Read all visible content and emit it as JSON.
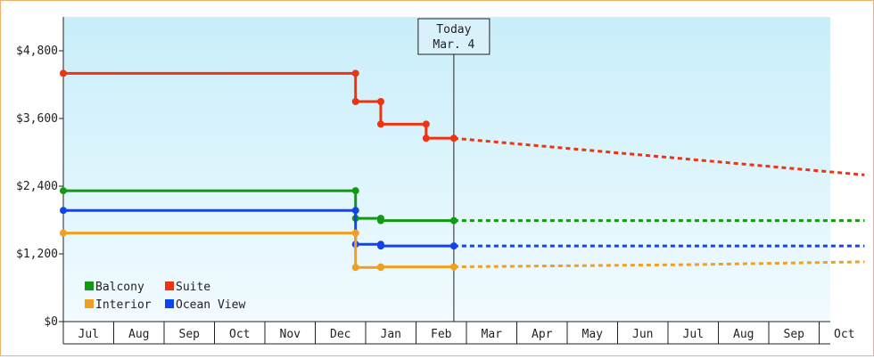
{
  "chart_data": {
    "type": "line",
    "step": true,
    "title": "",
    "xlabel": "",
    "ylabel": "",
    "ylim": [
      0,
      5400
    ],
    "yticks": [
      {
        "value": 0,
        "label": "$0"
      },
      {
        "value": 1200,
        "label": "$1,200"
      },
      {
        "value": 2400,
        "label": "$2,400"
      },
      {
        "value": 3600,
        "label": "$3,600"
      },
      {
        "value": 4800,
        "label": "$4,800"
      }
    ],
    "months": [
      "Jul",
      "Aug",
      "Sep",
      "Oct",
      "Nov",
      "Dec",
      "Jan",
      "Feb",
      "Mar",
      "Apr",
      "May",
      "Jun",
      "Jul",
      "Aug",
      "Sep",
      "Oct"
    ],
    "today": {
      "line1": "Today",
      "line2": "Mar. 4",
      "month_pos": 7.75
    },
    "grid": false,
    "legend_position": "bottom-left",
    "series": [
      {
        "name": "Suite",
        "color": "#ee3311",
        "points": [
          [
            0,
            4400
          ],
          [
            5.8,
            4400
          ],
          [
            5.8,
            3900
          ],
          [
            6.3,
            3900
          ],
          [
            6.3,
            3500
          ],
          [
            7.2,
            3500
          ],
          [
            7.2,
            3250
          ],
          [
            7.75,
            3250
          ]
        ],
        "forecast": [
          [
            7.75,
            3250
          ],
          [
            15.9,
            2600
          ]
        ]
      },
      {
        "name": "Balcony",
        "color": "#119911",
        "points": [
          [
            0,
            2320
          ],
          [
            5.8,
            2320
          ],
          [
            5.8,
            1830
          ],
          [
            6.3,
            1830
          ],
          [
            6.3,
            1790
          ],
          [
            7.75,
            1790
          ]
        ],
        "forecast": [
          [
            7.75,
            1790
          ],
          [
            15.9,
            1790
          ]
        ]
      },
      {
        "name": "Ocean View",
        "color": "#1144ee",
        "points": [
          [
            0,
            1970
          ],
          [
            5.8,
            1970
          ],
          [
            5.8,
            1370
          ],
          [
            6.3,
            1370
          ],
          [
            6.3,
            1340
          ],
          [
            7.75,
            1340
          ]
        ],
        "forecast": [
          [
            7.75,
            1340
          ],
          [
            15.9,
            1340
          ]
        ]
      },
      {
        "name": "Interior",
        "color": "#f0a020",
        "points": [
          [
            0,
            1570
          ],
          [
            5.8,
            1570
          ],
          [
            5.8,
            960
          ],
          [
            6.3,
            960
          ],
          [
            6.3,
            970
          ],
          [
            7.75,
            970
          ]
        ],
        "forecast": [
          [
            7.75,
            970
          ],
          [
            12.5,
            1010
          ],
          [
            15.9,
            1060
          ]
        ]
      }
    ],
    "legend": [
      {
        "name": "Balcony",
        "color": "#119911"
      },
      {
        "name": "Suite",
        "color": "#ee3311"
      },
      {
        "name": "Interior",
        "color": "#f0a020"
      },
      {
        "name": "Ocean View",
        "color": "#1144ee"
      }
    ]
  }
}
